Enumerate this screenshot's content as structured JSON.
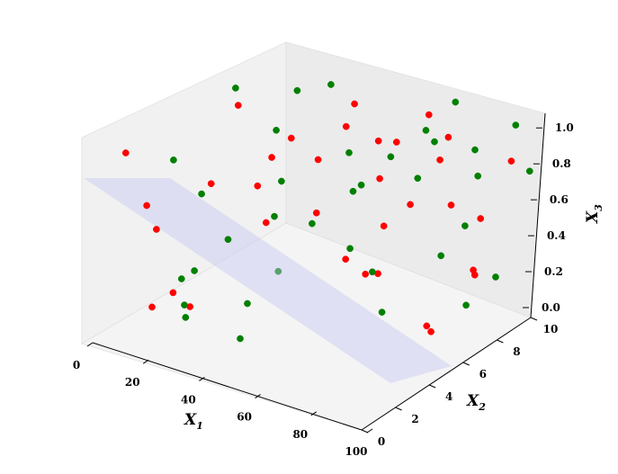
{
  "chart_data": {
    "type": "scatter",
    "title": "",
    "xlabel": "X",
    "xlabel_sub": "1",
    "ylabel": "X",
    "ylabel_sub": "2",
    "zlabel": "X",
    "zlabel_sub": "3",
    "xlim": [
      0,
      100
    ],
    "ylim": [
      0,
      10
    ],
    "zlim": [
      0,
      1
    ],
    "x_ticks": [
      "0",
      "20",
      "40",
      "60",
      "80",
      "100"
    ],
    "y_ticks": [
      "0",
      "2",
      "4",
      "6",
      "8",
      "10"
    ],
    "z_ticks": [
      "0.0",
      "0.2",
      "0.4",
      "0.6",
      "0.8",
      "1.0"
    ],
    "grid": false,
    "plane": {
      "color": "#c8c8f5",
      "description": "separating plane"
    },
    "series": [
      {
        "color": "#ff0000",
        "points": [
          [
            5,
            1,
            0.9
          ],
          [
            8,
            2,
            0.6
          ],
          [
            12,
            2,
            0.5
          ],
          [
            18,
            1,
            0.2
          ],
          [
            20,
            3,
            0.1
          ],
          [
            25,
            1,
            0.3
          ],
          [
            30,
            2,
            0.8
          ],
          [
            35,
            4,
            0.7
          ],
          [
            40,
            5,
            0.9
          ],
          [
            45,
            6,
            0.5
          ],
          [
            50,
            7,
            1.0
          ],
          [
            55,
            8,
            0.6
          ],
          [
            60,
            8,
            0.8
          ],
          [
            65,
            9,
            0.9
          ],
          [
            70,
            9,
            0.7
          ],
          [
            75,
            9,
            0.5
          ],
          [
            80,
            10,
            0.4
          ],
          [
            85,
            9,
            0.2
          ],
          [
            90,
            8,
            0.3
          ],
          [
            95,
            9,
            0.8
          ],
          [
            28,
            6,
            0.7
          ],
          [
            33,
            8,
            0.6
          ],
          [
            42,
            8,
            0.8
          ],
          [
            48,
            9,
            0.7
          ],
          [
            52,
            9,
            0.3
          ],
          [
            58,
            7,
            0.2
          ],
          [
            62,
            5,
            0.4
          ],
          [
            68,
            6,
            0.3
          ],
          [
            72,
            7,
            0.6
          ],
          [
            78,
            8,
            0.9
          ],
          [
            88,
            6,
            0.1
          ],
          [
            92,
            5,
            0.2
          ],
          [
            15,
            6,
            0.9
          ],
          [
            22,
            7,
            0.3
          ]
        ]
      },
      {
        "color": "#008000",
        "points": [
          [
            5,
            4,
            0.7
          ],
          [
            10,
            5,
            0.5
          ],
          [
            15,
            4,
            0.2
          ],
          [
            18,
            3,
            0.1
          ],
          [
            22,
            2,
            0.3
          ],
          [
            26,
            4,
            0.4
          ],
          [
            32,
            6,
            0.6
          ],
          [
            36,
            5,
            0.5
          ],
          [
            40,
            3,
            0.2
          ],
          [
            44,
            2,
            0.1
          ],
          [
            50,
            3,
            0.4
          ],
          [
            55,
            4,
            0.6
          ],
          [
            60,
            6,
            0.7
          ],
          [
            64,
            7,
            0.8
          ],
          [
            70,
            8,
            0.9
          ],
          [
            74,
            9,
            1.0
          ],
          [
            78,
            10,
            0.6
          ],
          [
            82,
            9,
            0.8
          ],
          [
            86,
            8,
            0.5
          ],
          [
            90,
            10,
            0.9
          ],
          [
            96,
            10,
            0.7
          ],
          [
            98,
            8,
            0.3
          ],
          [
            30,
            9,
            0.9
          ],
          [
            24,
            8,
            0.9
          ],
          [
            38,
            9,
            0.6
          ],
          [
            46,
            8,
            0.5
          ],
          [
            52,
            7,
            0.3
          ],
          [
            66,
            6,
            0.3
          ],
          [
            76,
            5,
            0.2
          ],
          [
            84,
            7,
            0.4
          ],
          [
            94,
            7,
            0.2
          ],
          [
            12,
            9,
            0.6
          ],
          [
            8,
            7,
            0.9
          ],
          [
            57,
            10,
            0.5
          ],
          [
            62,
            10,
            0.7
          ],
          [
            30,
            1,
            0.2
          ]
        ]
      }
    ]
  }
}
